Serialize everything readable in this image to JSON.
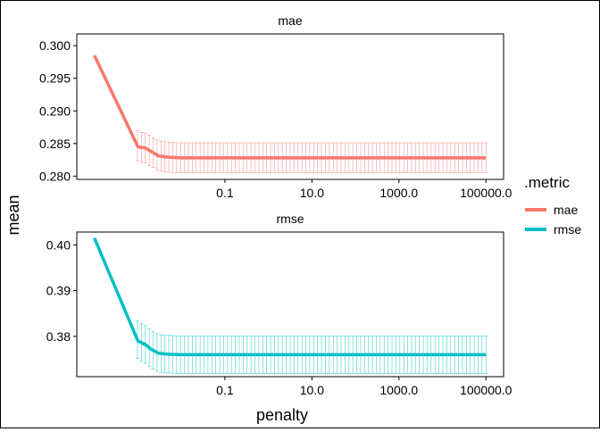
{
  "chart_data": {
    "type": "line",
    "facet_by": "metric",
    "xlabel": "penalty",
    "ylabel": "mean",
    "x_scale": "log10",
    "x_ticks": [
      0.1,
      10.0,
      1000.0,
      100000.0
    ],
    "x_tick_labels": [
      "0.1",
      "10.0",
      "1000.0",
      "100000.0"
    ],
    "xlim": [
      0.0001,
      100000
    ],
    "legend": {
      "title": ".metric",
      "position": "right",
      "entries": [
        {
          "label": "mae",
          "color": "#F8766D"
        },
        {
          "label": "rmse",
          "color": "#00BFC4"
        }
      ]
    },
    "grid": false,
    "error_bars": true,
    "panels": [
      {
        "strip": "mae",
        "color": "#F8766D",
        "ylim": [
          0.2795,
          0.3018
        ],
        "y_ticks": [
          0.28,
          0.285,
          0.29,
          0.295,
          0.3
        ],
        "y_tick_labels": [
          "0.280",
          "0.285",
          "0.290",
          "0.295",
          "0.300"
        ],
        "error_halfwidth": 0.0023,
        "series": {
          "x": [
            0.0001,
            0.001,
            0.0015,
            0.002,
            0.003,
            0.005,
            0.01,
            0.1,
            10.0,
            1000.0,
            100000.0
          ],
          "y": [
            0.2985,
            0.2845,
            0.2843,
            0.2838,
            0.2831,
            0.2829,
            0.2828,
            0.2828,
            0.2828,
            0.2828,
            0.2828
          ]
        }
      },
      {
        "strip": "rmse",
        "color": "#00BFC4",
        "ylim": [
          0.3712,
          0.4028
        ],
        "y_ticks": [
          0.38,
          0.39,
          0.4
        ],
        "y_tick_labels": [
          "0.38",
          "0.39",
          "0.40"
        ],
        "error_halfwidth": 0.0041,
        "series": {
          "x": [
            0.0001,
            0.001,
            0.0015,
            0.002,
            0.003,
            0.005,
            0.01,
            0.1,
            10.0,
            1000.0,
            100000.0
          ],
          "y": [
            0.4015,
            0.379,
            0.3782,
            0.3772,
            0.3763,
            0.3761,
            0.376,
            0.376,
            0.376,
            0.376,
            0.376
          ]
        }
      }
    ]
  }
}
